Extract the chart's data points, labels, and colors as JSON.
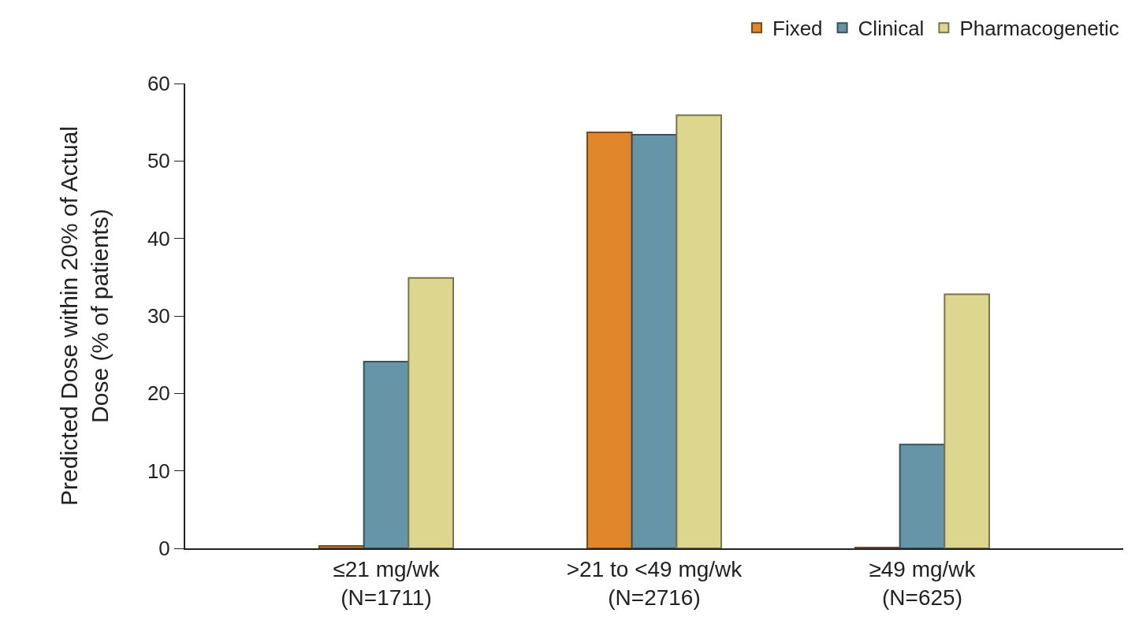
{
  "chart_data": {
    "type": "bar",
    "ylabel": "Predicted Dose within 20% of Actual\nDose (% of patients)",
    "categories": [
      "≤21 mg/wk\n(N=1711)",
      ">21 to <49 mg/wk\n(N=2716)",
      "≥49 mg/wk\n(N=625)"
    ],
    "series": [
      {
        "name": "Fixed",
        "color": "#e0862a",
        "values": [
          0.3,
          53.7,
          0.1
        ]
      },
      {
        "name": "Clinical",
        "color": "#6795a8",
        "values": [
          24.1,
          53.4,
          13.4
        ]
      },
      {
        "name": "Pharmacogenetic",
        "color": "#ddd68e",
        "values": [
          34.9,
          55.9,
          32.8
        ]
      }
    ],
    "ylim": [
      0,
      60
    ],
    "yticks": [
      0,
      10,
      20,
      30,
      40,
      50,
      60
    ],
    "legend": "top right"
  }
}
